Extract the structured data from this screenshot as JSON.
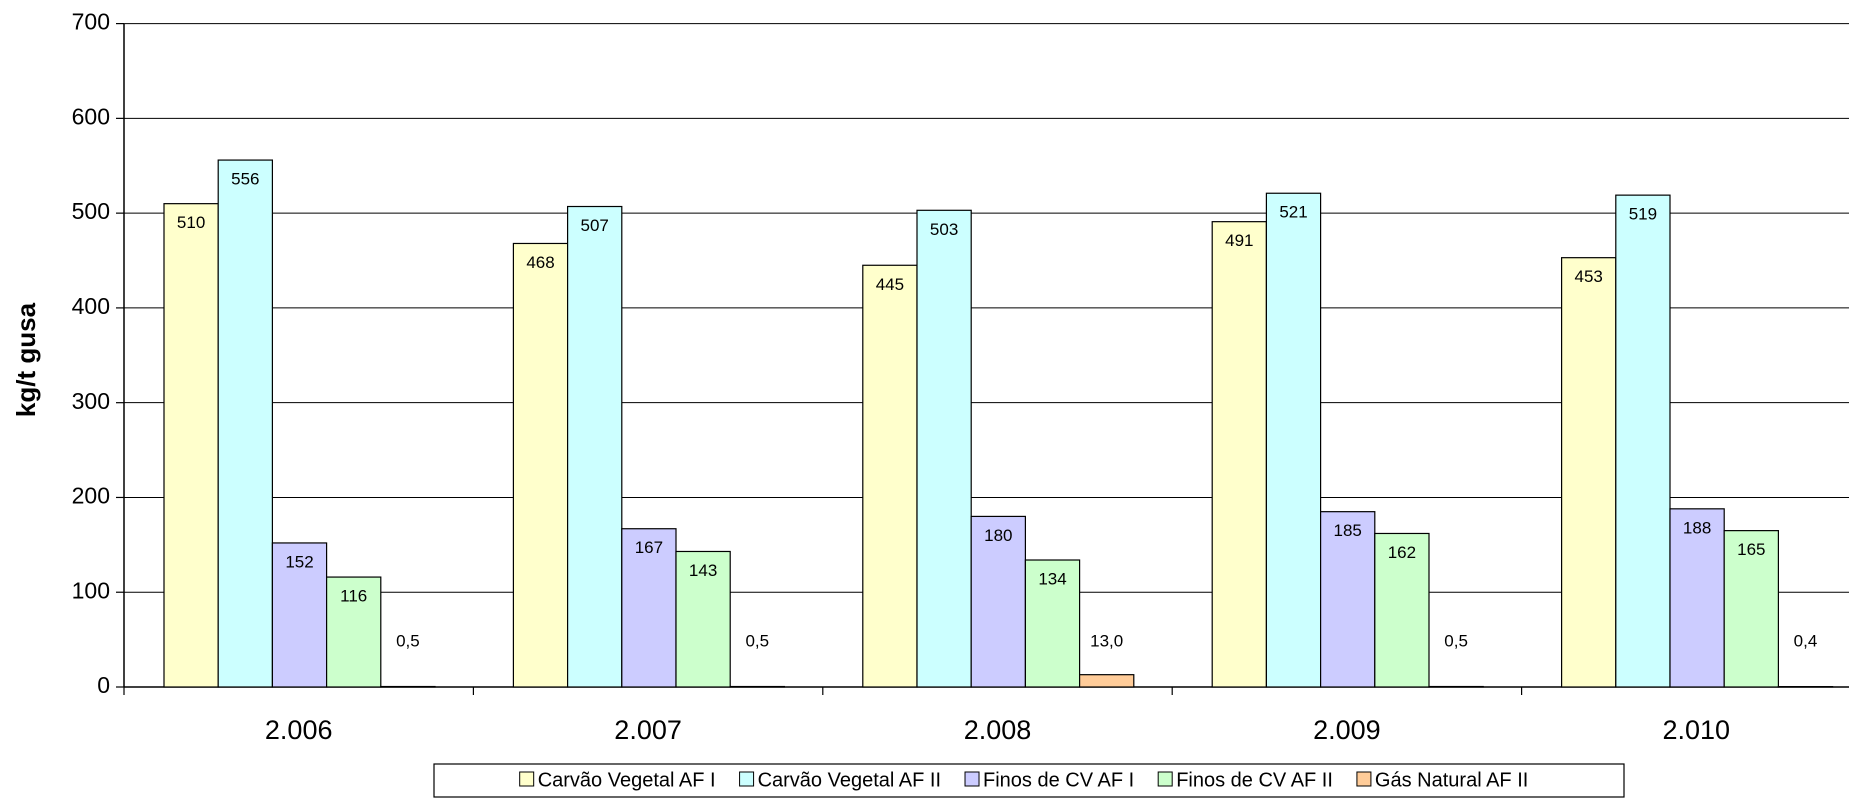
{
  "chart_data": {
    "type": "bar",
    "y_label": "kg/t gusa",
    "categories": [
      "2.006",
      "2.007",
      "2.008",
      "2.009",
      "2.010"
    ],
    "series": [
      {
        "name": "Carvão Vegetal AF I",
        "color": "#ffffcc",
        "values": [
          510,
          468,
          445,
          491,
          453
        ]
      },
      {
        "name": "Carvão Vegetal AF II",
        "color": "#ccffff",
        "values": [
          556,
          507,
          503,
          521,
          519
        ]
      },
      {
        "name": "Finos de CV AF I",
        "color": "#ccccff",
        "values": [
          152,
          167,
          180,
          185,
          188
        ]
      },
      {
        "name": "Finos de CV AF II",
        "color": "#ccffcc",
        "values": [
          116,
          143,
          134,
          162,
          165
        ]
      },
      {
        "name": "Gás Natural AF II",
        "color": "#ffcc99",
        "values": [
          0.5,
          0.5,
          13.0,
          0.5,
          0.4
        ],
        "value_labels": [
          "0,5",
          "0,5",
          "13,0",
          "0,5",
          "0,4"
        ]
      }
    ],
    "ylim": [
      0,
      700
    ],
    "yticks": [
      0,
      100,
      200,
      300,
      400,
      500,
      600,
      700
    ],
    "grid": true,
    "legend": "bottom"
  }
}
